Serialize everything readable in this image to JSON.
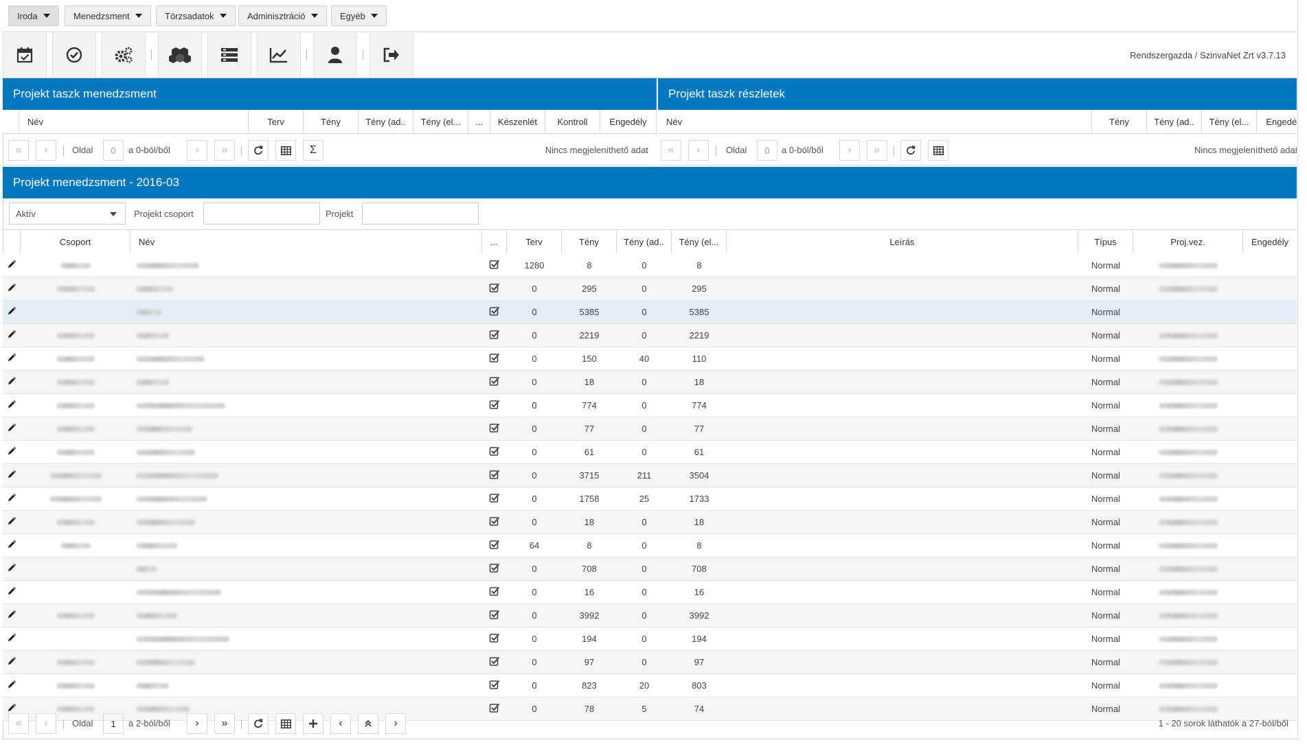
{
  "menu": [
    {
      "label": "Iroda",
      "active": true
    },
    {
      "label": "Menedzsment",
      "active": false
    },
    {
      "label": "Törzsadatok",
      "active": false
    },
    {
      "label": "Adminisztráció",
      "active": false
    },
    {
      "label": "Egyéb",
      "active": false
    }
  ],
  "toolbar": {
    "icons": [
      "calendar-check-icon",
      "check-circle-icon",
      "cogs-icon",
      "cubes-icon",
      "list-icon",
      "line-chart-icon",
      "user-icon",
      "sign-out-icon"
    ],
    "user_info": "Rendszergazda / SzinvaNet Zrt v3.7.13"
  },
  "task_panel": {
    "title": "Projekt taszk menedzsment",
    "columns": [
      "Név",
      "Terv",
      "Tény",
      "Tény (ad..",
      "Tény (el...",
      "...",
      "Készenlét",
      "Kontroll",
      "Engedély"
    ],
    "pager": {
      "page_label": "Oldal",
      "page_value": "0",
      "of_label": "a 0-ból/ből",
      "empty_text": "Nincs megjeleníthető adat",
      "sum_symbol": "Σ"
    }
  },
  "details_panel": {
    "title": "Projekt taszk részletek",
    "columns": [
      "Név",
      "Tény",
      "Tény (ad..",
      "Tény (el...",
      "Engedély"
    ],
    "pager": {
      "page_label": "Oldal",
      "page_value": "0",
      "of_label": "a 0-ból/ből",
      "empty_text": "Nincs megjeleníthető adat"
    }
  },
  "project_panel": {
    "title": "Projekt menedzsment - 2016-03",
    "filters": {
      "status_value": "Aktív",
      "group_label": "Projekt csoport",
      "project_label": "Projekt"
    },
    "columns": {
      "csoport": "Csoport",
      "nev": "Név",
      "dots": "...",
      "terv": "Terv",
      "teny": "Tény",
      "teny_ad": "Tény (ad..",
      "teny_el": "Tény (el...",
      "leiras": "Leírás",
      "tipus": "Típus",
      "projvez": "Proj.vez.",
      "engedely": "Engedély"
    },
    "rows": [
      {
        "terv": "1280",
        "teny": "8",
        "teny_ad": "0",
        "teny_el": "8",
        "tipus": "Normal",
        "csoport_w": 44,
        "nev_w": 92,
        "vez": true
      },
      {
        "terv": "0",
        "teny": "295",
        "teny_ad": "0",
        "teny_el": "295",
        "tipus": "Normal",
        "csoport_w": 56,
        "nev_w": 54,
        "vez": true
      },
      {
        "terv": "0",
        "teny": "5385",
        "teny_ad": "0",
        "teny_el": "5385",
        "tipus": "Normal",
        "csoport_w": 0,
        "nev_w": 38,
        "vez": false
      },
      {
        "terv": "0",
        "teny": "2219",
        "teny_ad": "0",
        "teny_el": "2219",
        "tipus": "Normal",
        "csoport_w": 56,
        "nev_w": 48,
        "vez": true
      },
      {
        "terv": "0",
        "teny": "150",
        "teny_ad": "40",
        "teny_el": "110",
        "tipus": "Normal",
        "csoport_w": 56,
        "nev_w": 100,
        "vez": true
      },
      {
        "terv": "0",
        "teny": "18",
        "teny_ad": "0",
        "teny_el": "18",
        "tipus": "Normal",
        "csoport_w": 56,
        "nev_w": 48,
        "vez": true
      },
      {
        "terv": "0",
        "teny": "774",
        "teny_ad": "0",
        "teny_el": "774",
        "tipus": "Normal",
        "csoport_w": 56,
        "nev_w": 130,
        "vez": true
      },
      {
        "terv": "0",
        "teny": "77",
        "teny_ad": "0",
        "teny_el": "77",
        "tipus": "Normal",
        "csoport_w": 56,
        "nev_w": 82,
        "vez": true
      },
      {
        "terv": "0",
        "teny": "61",
        "teny_ad": "0",
        "teny_el": "61",
        "tipus": "Normal",
        "csoport_w": 56,
        "nev_w": 86,
        "vez": true
      },
      {
        "terv": "0",
        "teny": "3715",
        "teny_ad": "211",
        "teny_el": "3504",
        "tipus": "Normal",
        "csoport_w": 76,
        "nev_w": 120,
        "vez": true
      },
      {
        "terv": "0",
        "teny": "1758",
        "teny_ad": "25",
        "teny_el": "1733",
        "tipus": "Normal",
        "csoport_w": 76,
        "nev_w": 104,
        "vez": true
      },
      {
        "terv": "0",
        "teny": "18",
        "teny_ad": "0",
        "teny_el": "18",
        "tipus": "Normal",
        "csoport_w": 56,
        "nev_w": 86,
        "vez": true
      },
      {
        "terv": "64",
        "teny": "8",
        "teny_ad": "0",
        "teny_el": "8",
        "tipus": "Normal",
        "csoport_w": 44,
        "nev_w": 60,
        "vez": true
      },
      {
        "terv": "0",
        "teny": "708",
        "teny_ad": "0",
        "teny_el": "708",
        "tipus": "Normal",
        "csoport_w": 0,
        "nev_w": 30,
        "vez": true
      },
      {
        "terv": "0",
        "teny": "16",
        "teny_ad": "0",
        "teny_el": "16",
        "tipus": "Normal",
        "csoport_w": 0,
        "nev_w": 124,
        "vez": true
      },
      {
        "terv": "0",
        "teny": "3992",
        "teny_ad": "0",
        "teny_el": "3992",
        "tipus": "Normal",
        "csoport_w": 56,
        "nev_w": 60,
        "vez": true
      },
      {
        "terv": "0",
        "teny": "194",
        "teny_ad": "0",
        "teny_el": "194",
        "tipus": "Normal",
        "csoport_w": 0,
        "nev_w": 136,
        "vez": true
      },
      {
        "terv": "0",
        "teny": "97",
        "teny_ad": "0",
        "teny_el": "97",
        "tipus": "Normal",
        "csoport_w": 56,
        "nev_w": 86,
        "vez": true
      },
      {
        "terv": "0",
        "teny": "823",
        "teny_ad": "20",
        "teny_el": "803",
        "tipus": "Normal",
        "csoport_w": 56,
        "nev_w": 48,
        "vez": true
      },
      {
        "terv": "0",
        "teny": "78",
        "teny_ad": "5",
        "teny_el": "74",
        "tipus": "Normal",
        "csoport_w": 56,
        "nev_w": 78,
        "vez": true
      }
    ],
    "selected_row": 2,
    "pager": {
      "page_label": "Oldal",
      "page_value": "1",
      "of_label": "a 2-ból/ből",
      "info": "1 - 20 sorok láthatók a 27-ból/ből"
    }
  },
  "colors": {
    "accent": "#0078bf",
    "selected_row": "#e3eef4",
    "alt_row": "#f5f5f5"
  }
}
